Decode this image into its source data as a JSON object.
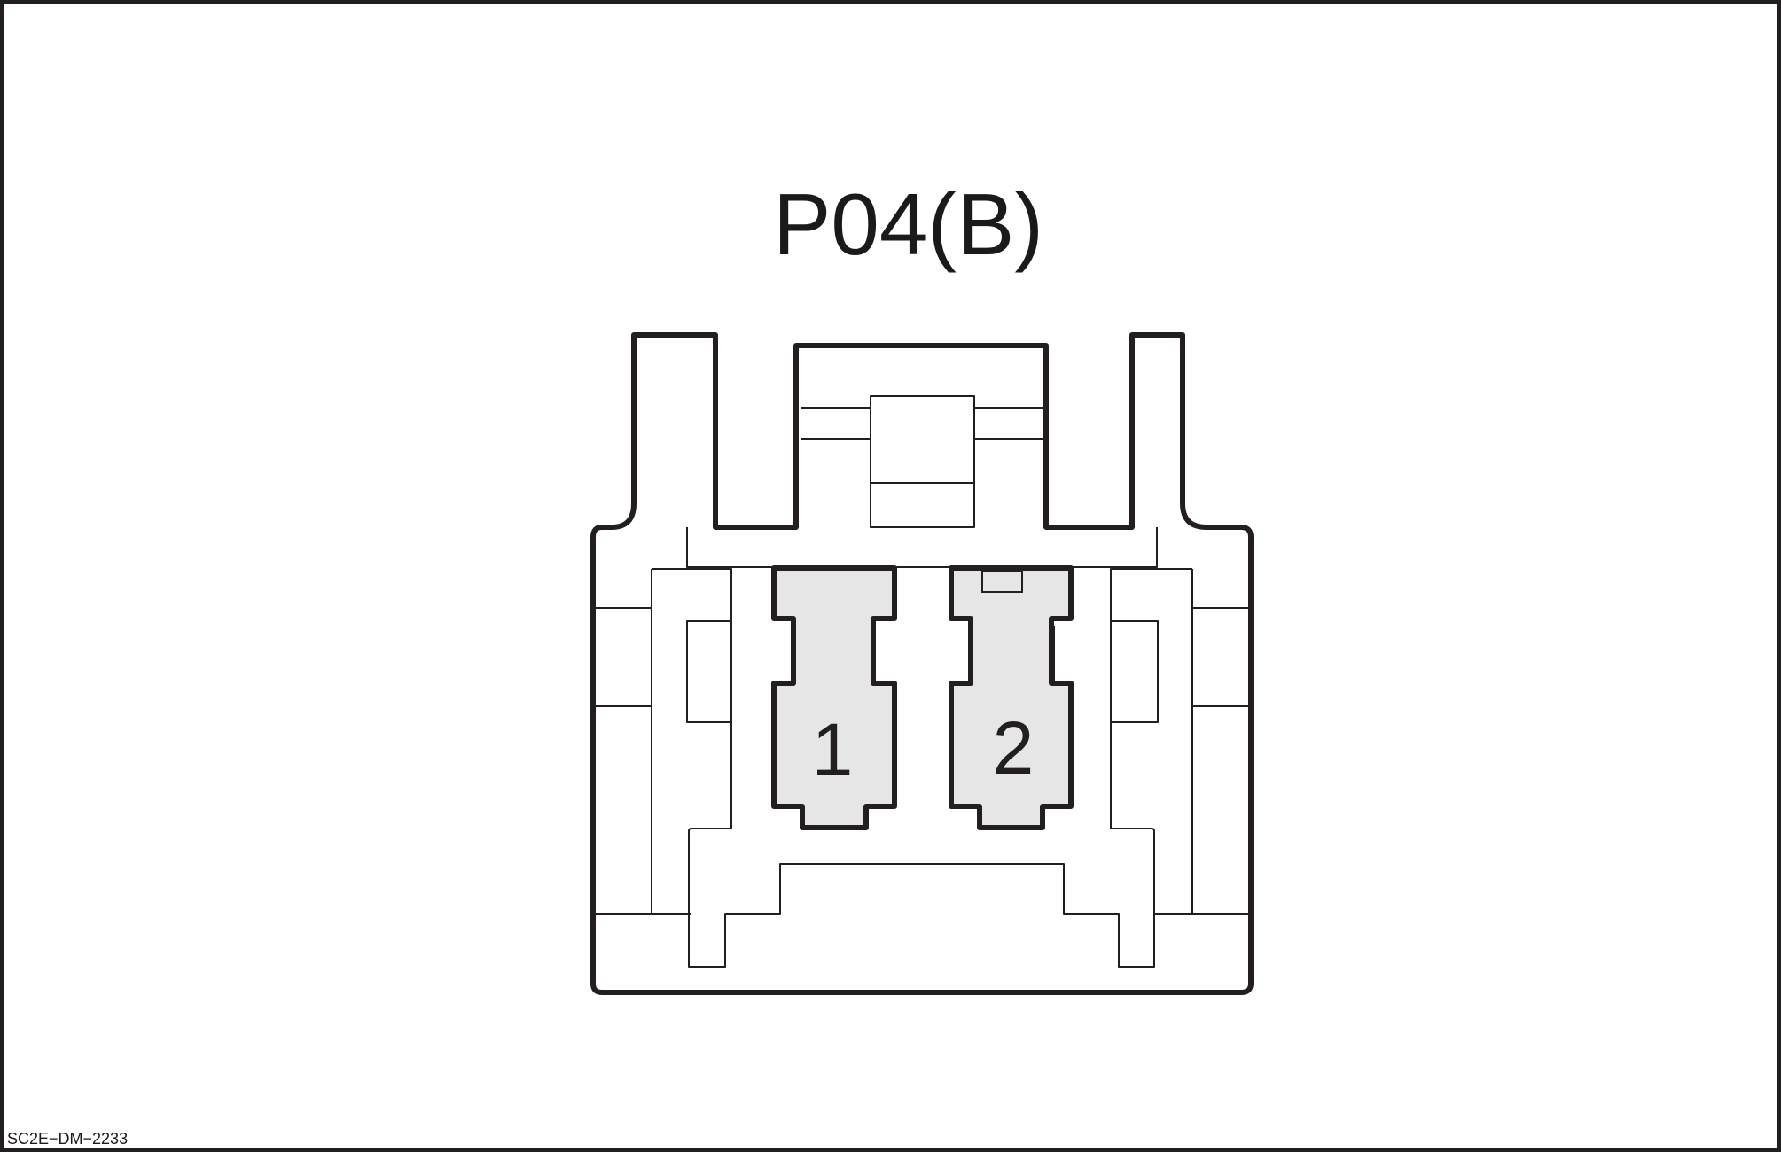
{
  "diagram": {
    "connector_label": "P04(B)",
    "reference_code": "SC2E−DM−2233",
    "pins": [
      {
        "number": "1"
      },
      {
        "number": "2"
      }
    ],
    "colors": {
      "outline": "#231f20",
      "pin_fill": "#e6e6e6",
      "background": "#ffffff"
    }
  }
}
